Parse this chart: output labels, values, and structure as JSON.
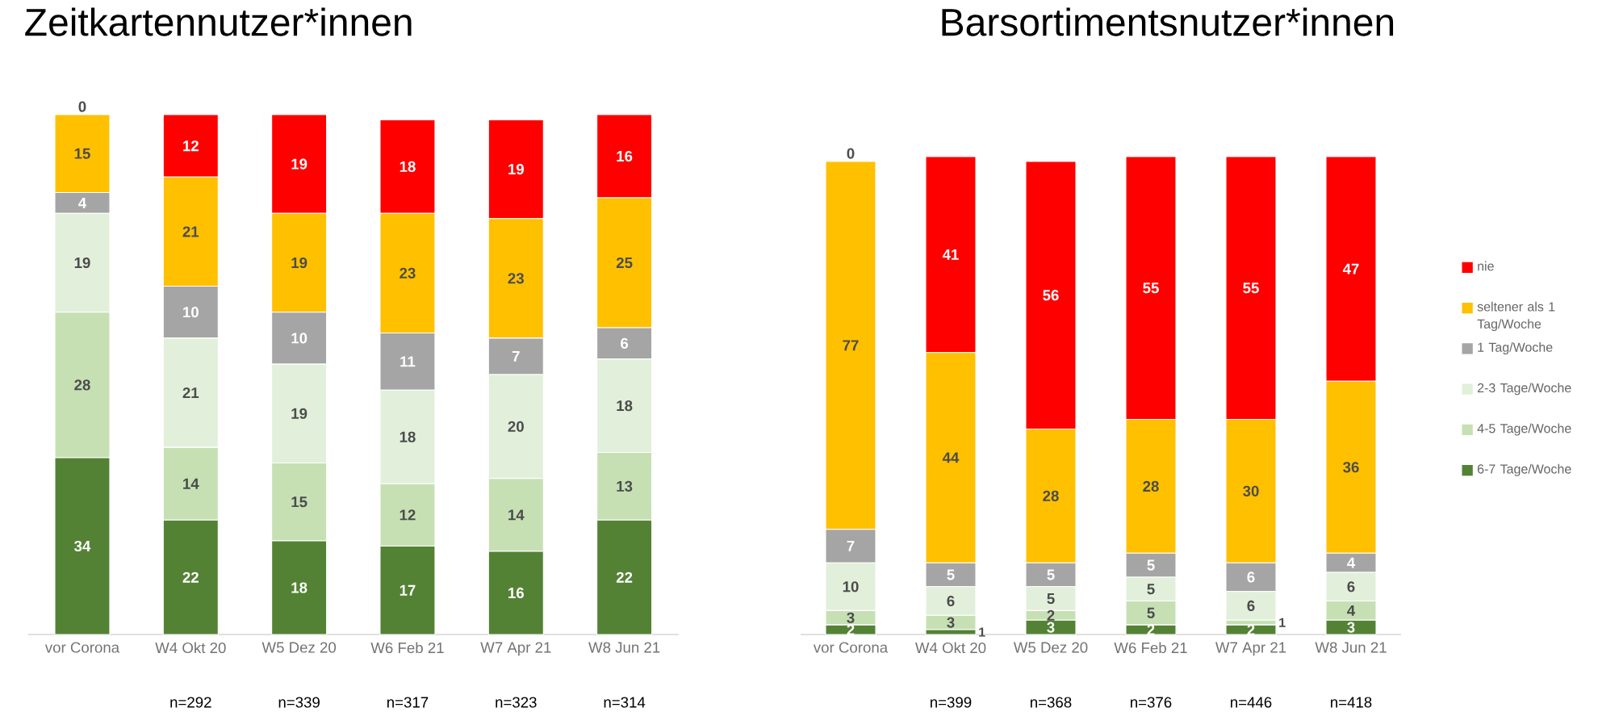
{
  "chart_data": [
    {
      "type": "bar",
      "stacked": true,
      "title": "Zeitkartennutzer*innen",
      "data_labels": true,
      "legend": false,
      "categories": [
        "vor Corona",
        "W4 Okt 20",
        "W5 Dez 20",
        "W6 Feb 21",
        "W7 Apr 21",
        "W8 Jun 21"
      ],
      "series": [
        {
          "color": "#548235",
          "values": [
            34,
            22,
            18,
            17,
            16,
            22
          ]
        },
        {
          "color": "#c6e0b4",
          "values": [
            28,
            14,
            15,
            12,
            14,
            13
          ]
        },
        {
          "color": "#e2efda",
          "values": [
            19,
            21,
            19,
            18,
            20,
            18
          ]
        },
        {
          "color": "#a5a5a5",
          "values": [
            4,
            10,
            10,
            11,
            7,
            6
          ]
        },
        {
          "color": "#ffc000",
          "values": [
            15,
            21,
            19,
            23,
            23,
            25
          ]
        },
        {
          "color": "#ff0000",
          "values": [
            0,
            12,
            19,
            18,
            19,
            16
          ]
        }
      ],
      "annotations": [
        "n=292",
        "n=339",
        "n=317",
        "n=323",
        "n=314"
      ]
    },
    {
      "type": "bar",
      "stacked": true,
      "title": "Barsortimentsnutzer*innen",
      "data_labels": true,
      "legend": "right",
      "categories": [
        "vor Corona",
        "W4 Okt 20",
        "W5 Dez 20",
        "W6 Feb 21",
        "W7 Apr 21",
        "W8 Jun 21"
      ],
      "series": [
        {
          "name": "6-7 Tage/Woche",
          "color": "#548235",
          "values": [
            2,
            1,
            3,
            2,
            2,
            3
          ]
        },
        {
          "name": "4-5 Tage/Woche",
          "color": "#c6e0b4",
          "values": [
            3,
            3,
            2,
            5,
            1,
            4
          ]
        },
        {
          "name": "2-3 Tage/Woche",
          "color": "#e2efda",
          "values": [
            10,
            6,
            5,
            5,
            6,
            6
          ]
        },
        {
          "name": "1 Tag/Woche",
          "color": "#a5a5a5",
          "values": [
            7,
            5,
            5,
            5,
            6,
            4
          ]
        },
        {
          "name": "seltener als 1 Tag/Woche",
          "color": "#ffc000",
          "values": [
            77,
            44,
            28,
            28,
            30,
            36
          ]
        },
        {
          "name": "nie",
          "color": "#ff0000",
          "values": [
            0,
            41,
            56,
            55,
            55,
            47
          ]
        }
      ],
      "annotations": [
        "n=399",
        "n=368",
        "n=376",
        "n=446",
        "n=418"
      ]
    }
  ]
}
